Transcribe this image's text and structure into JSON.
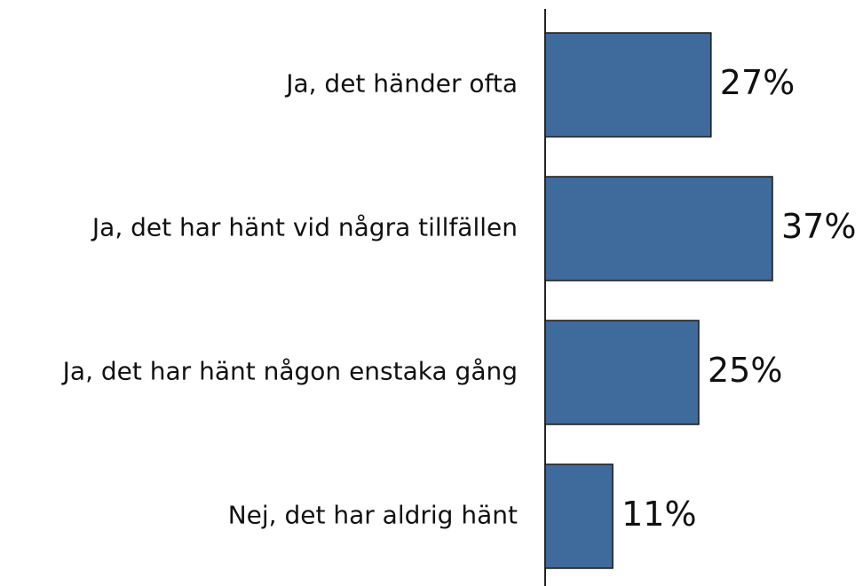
{
  "chart_data": {
    "type": "bar",
    "orientation": "horizontal",
    "categories": [
      "Ja, det händer ofta",
      "Ja, det har hänt vid några tillfällen",
      "Ja, det har hänt någon enstaka gång",
      "Nej, det har aldrig hänt"
    ],
    "values": [
      27,
      37,
      25,
      11
    ],
    "value_labels": [
      "27%",
      "37%",
      "25%",
      "11%"
    ],
    "color": "#3e6a9c"
  }
}
